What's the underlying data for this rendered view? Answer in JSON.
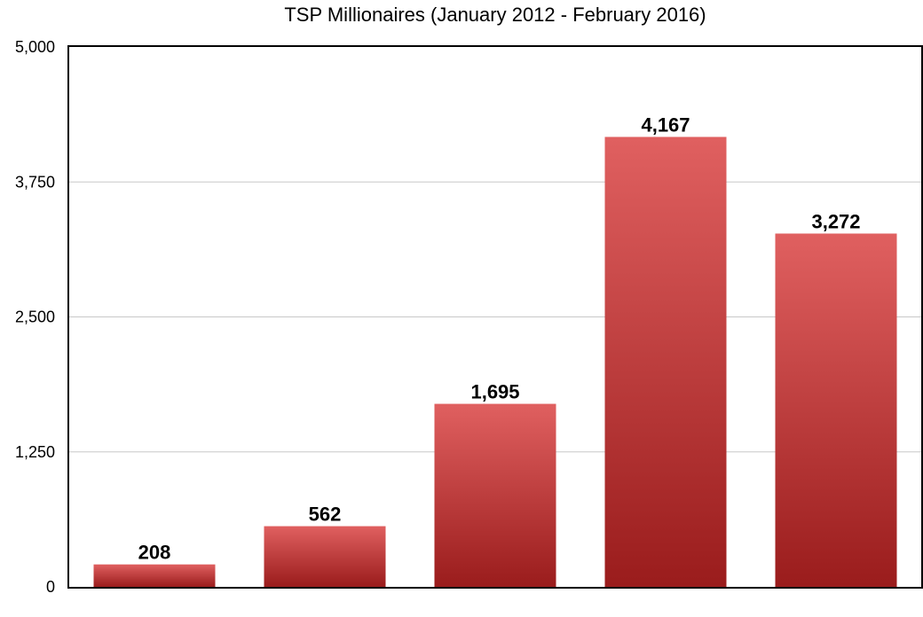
{
  "chart_data": {
    "type": "bar",
    "title": "TSP Millionaires (January 2012 - February 2016)",
    "categories": [
      "",
      "",
      "",
      "",
      ""
    ],
    "values": [
      208,
      562,
      1695,
      4167,
      3272
    ],
    "value_labels": [
      "208",
      "562",
      "1,695",
      "4,167",
      "3,272"
    ],
    "xlabel": "",
    "ylabel": "",
    "ylim": [
      0,
      5000
    ],
    "yticks": [
      0,
      1250,
      2500,
      3750,
      5000
    ],
    "ytick_labels": [
      "0",
      "1,250",
      "2,500",
      "3,750",
      "5,000"
    ],
    "grid": true,
    "legend": "none",
    "colors": {
      "bar_top": "#e06060",
      "bar_bottom": "#9a1c1c",
      "gridline": "#c8c8c8"
    }
  }
}
